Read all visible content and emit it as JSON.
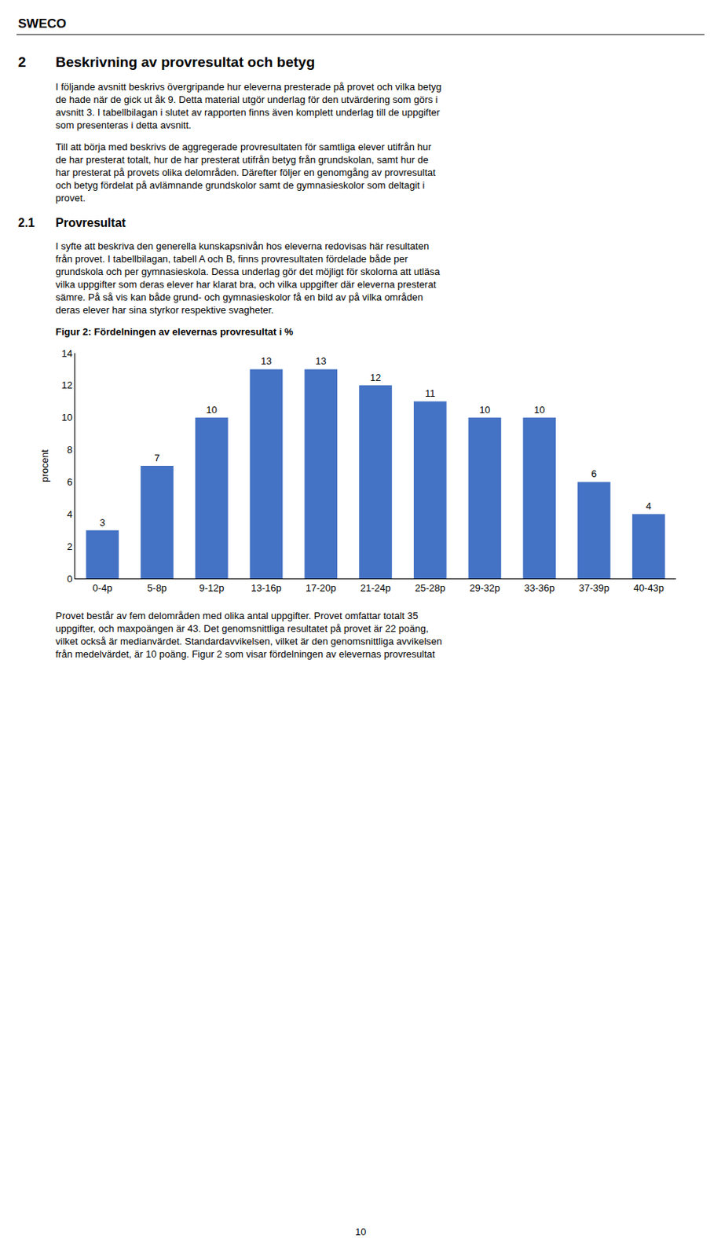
{
  "chart_data": {
    "type": "bar",
    "title": "Figur 2: Fördelningen av elevernas provresultat i %",
    "categories": [
      "0-4p",
      "5-8p",
      "9-12p",
      "13-16p",
      "17-20p",
      "21-24p",
      "25-28p",
      "29-32p",
      "33-36p",
      "37-39p",
      "40-43p"
    ],
    "values": [
      3,
      7,
      10,
      13,
      13,
      12,
      11,
      10,
      10,
      6,
      4
    ],
    "color": "#4472C4",
    "ylabel": "procent",
    "ylim": [
      0,
      14
    ],
    "yticks": [
      0,
      2,
      4,
      6,
      8,
      10,
      12,
      14
    ],
    "grid": false,
    "data_labels": true,
    "annotations": [
      "SWECO",
      "2",
      "Beskrivning av provresultat och betyg",
      "I följande avsnitt beskrivs övergripande hur eleverna presterade på provet och vilka betyg\nde hade när de gick ut åk 9. Detta material utgör underlag för den utvärdering som görs i\navsnitt 3. I tabellbilagan i slutet av rapporten finns även komplett underlag till de uppgifter\nsom presenteras i detta avsnitt.",
      "Till att börja med beskrivs de aggregerade provresultaten för samtliga elever utifrån hur\nde har presterat totalt, hur de har presterat utifrån betyg från grundskolan, samt hur de\nhar presterat på provets olika delområden. Därefter följer en genomgång av provresultat\noch betyg fördelat på avlämnande grundskolor samt de gymnasieskolor som deltagit i\nprovet.",
      "2.1",
      "Provresultat",
      "I syfte att beskriva den generella kunskapsnivån hos eleverna redovisas här resultaten\nfrån provet. I tabellbilagan, tabell A och B, finns provresultaten fördelade både per\ngrundskola och per gymnasieskola. Dessa underlag gör det möjligt för skolorna att utläsa\nvilka uppgifter som deras elever har klarat bra, och vilka uppgifter där eleverna presterat\nsämre. På så vis kan både grund- och gymnasieskolor få en bild av på vilka områden\nderas elever har sina styrkor respektive svagheter.",
      "Provet består av fem delområden med olika antal uppgifter. Provet omfattar totalt 35\nuppgifter, och maxpoängen är 43. Det genomsnittliga resultatet på provet är 22 poäng,\nvilket också är medianvärdet. Standardavvikelsen, vilket är den genomsnittliga avvikelsen\nfrån medelvärdet, är 10 poäng. Figur 2 som visar fördelningen av elevernas provresultat",
      "10"
    ]
  }
}
